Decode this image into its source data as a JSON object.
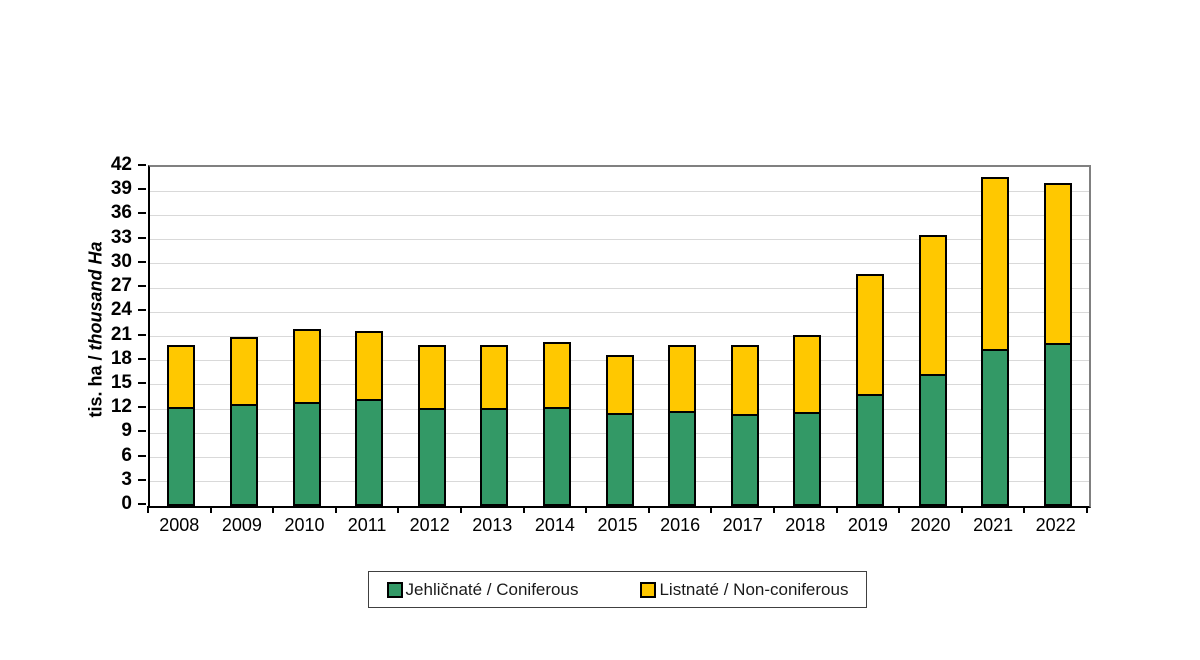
{
  "chart_data": {
    "type": "bar",
    "stacked": true,
    "title": "",
    "ylabel": "tis. ha / thousand Ha",
    "ylabel_normal": "tis. ha / ",
    "ylabel_italic": "thousand Ha",
    "ylim": [
      0,
      42
    ],
    "ytick_step": 3,
    "grid": true,
    "legend_position": "bottom-center",
    "categories": [
      "2008",
      "2009",
      "2010",
      "2011",
      "2012",
      "2013",
      "2014",
      "2015",
      "2016",
      "2017",
      "2018",
      "2019",
      "2020",
      "2021",
      "2022"
    ],
    "series": [
      {
        "name": "Jehličnaté / Coniferous",
        "color": "#339966",
        "values": [
          12.3,
          12.7,
          12.9,
          13.3,
          12.2,
          12.1,
          12.3,
          11.5,
          11.8,
          11.4,
          11.6,
          13.9,
          16.3,
          19.5,
          20.2
        ]
      },
      {
        "name": "Listnaté / Non-coniferous",
        "color": "#FFC800",
        "values": [
          7.6,
          8.2,
          9.0,
          8.4,
          7.7,
          7.8,
          8.0,
          7.2,
          8.1,
          8.5,
          9.6,
          14.8,
          17.3,
          21.3,
          19.8
        ]
      }
    ]
  },
  "colors": {
    "bar_border": "#000000",
    "gridline": "#D9D9D9",
    "axis": "#000000",
    "frame": "#808080",
    "text": "#000000"
  }
}
